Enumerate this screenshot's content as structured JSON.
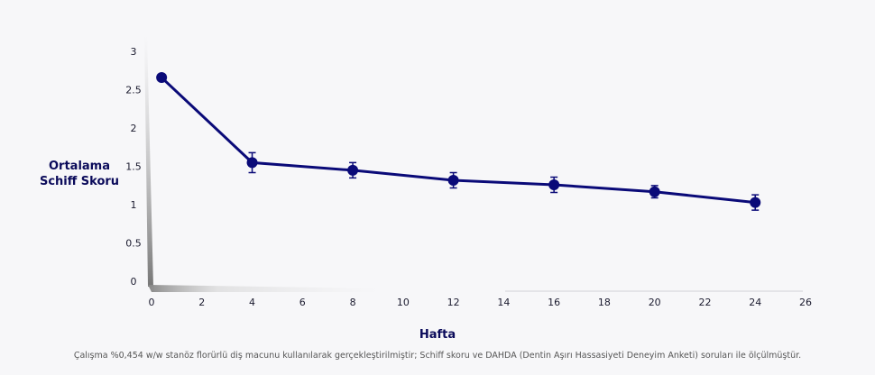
{
  "chart_data": {
    "type": "line",
    "ylabel": "Ortalama Schiff Skoru",
    "xlabel": "Hafta",
    "footnote": "Çalışma %0,454 w/w stanöz florürlü diş macunu kullanılarak gerçekleştirilmiştir; Schiff skoru ve DAHDA (Dentin Aşırı Hassasiyeti Deneyim Anketi) soruları ile ölçülmüştür.",
    "x": [
      0.4,
      4,
      8,
      12,
      16,
      20,
      24
    ],
    "series": [
      {
        "color": "#0a0a78",
        "values": [
          2.67,
          1.56,
          1.46,
          1.33,
          1.27,
          1.18,
          1.04
        ],
        "errors": [
          null,
          0.13,
          0.1,
          0.1,
          0.1,
          0.08,
          0.1
        ]
      }
    ],
    "xlim": [
      0,
      26
    ],
    "xticks": [
      0,
      2,
      4,
      6,
      8,
      10,
      12,
      14,
      16,
      18,
      20,
      22,
      24,
      26
    ],
    "ylim": [
      0,
      3
    ],
    "yticks": [
      0,
      0.5,
      1,
      1.5,
      2,
      2.5,
      3
    ]
  }
}
